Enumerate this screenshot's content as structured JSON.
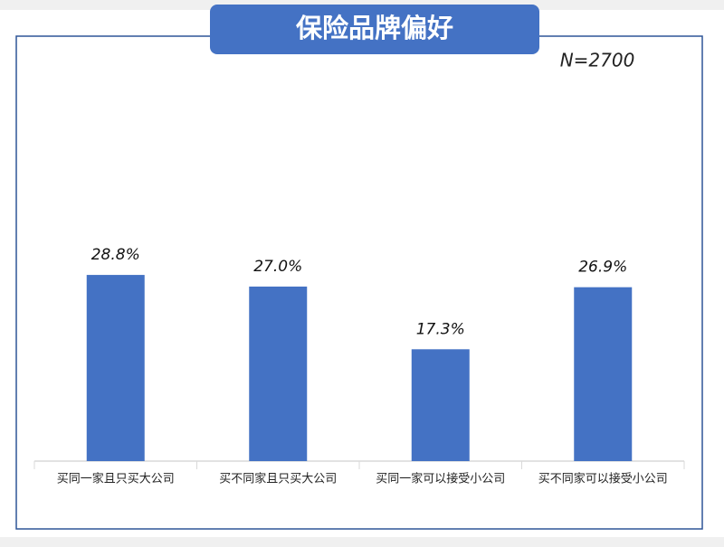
{
  "chart_data": {
    "type": "bar",
    "title": "保险品牌偏好",
    "annotation": "N=2700",
    "categories": [
      "买同一家且只买大公司",
      "买不同家且只买大公司",
      "买同一家可以接受小公司",
      "买不同家可以接受小公司"
    ],
    "values": [
      28.8,
      27.0,
      17.3,
      26.9
    ],
    "value_labels": [
      "28.8%",
      "27.0%",
      "17.3%",
      "26.9%"
    ],
    "color": "#4472c4"
  }
}
